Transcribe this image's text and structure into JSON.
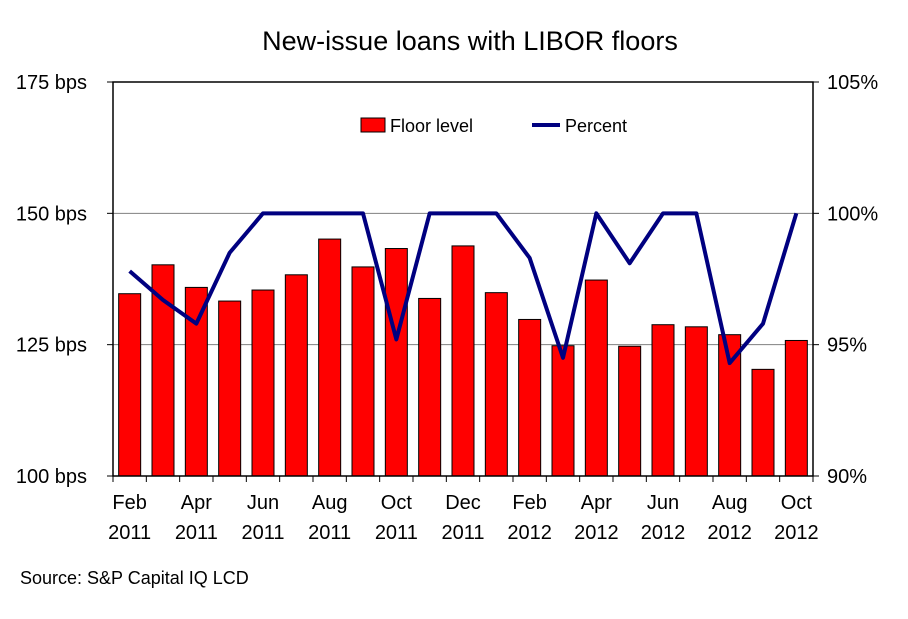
{
  "chart_data": {
    "type": "bar+line",
    "title": "New-issue loans with LIBOR floors",
    "categories": [
      "Feb 2011",
      "Mar 2011",
      "Apr 2011",
      "May 2011",
      "Jun 2011",
      "Jul 2011",
      "Aug 2011",
      "Sep 2011",
      "Oct 2011",
      "Nov 2011",
      "Dec 2011",
      "Jan 2012",
      "Feb 2012",
      "Mar 2012",
      "Apr 2012",
      "May 2012",
      "Jun 2012",
      "Jul 2012",
      "Aug 2012",
      "Sep 2012",
      "Oct 2012"
    ],
    "x_tick_labels": [
      {
        "month": "Feb",
        "year": "2011"
      },
      {
        "month": "Apr",
        "year": "2011"
      },
      {
        "month": "Jun",
        "year": "2011"
      },
      {
        "month": "Aug",
        "year": "2011"
      },
      {
        "month": "Oct",
        "year": "2011"
      },
      {
        "month": "Dec",
        "year": "2011"
      },
      {
        "month": "Feb",
        "year": "2012"
      },
      {
        "month": "Apr",
        "year": "2012"
      },
      {
        "month": "Jun",
        "year": "2012"
      },
      {
        "month": "Aug",
        "year": "2012"
      },
      {
        "month": "Oct",
        "year": "2012"
      }
    ],
    "series": [
      {
        "name": "Floor level",
        "type": "bar",
        "axis": "left",
        "color": "#ff0000",
        "values": [
          134.7,
          140.2,
          135.9,
          133.3,
          135.4,
          138.3,
          145.1,
          139.8,
          143.3,
          133.8,
          143.8,
          134.9,
          129.8,
          124.8,
          137.3,
          124.7,
          128.8,
          128.4,
          126.9,
          120.3,
          125.8
        ]
      },
      {
        "name": "Percent",
        "type": "line",
        "axis": "right",
        "color": "#000080",
        "values": [
          97.8,
          96.7,
          95.8,
          98.5,
          100,
          100,
          100,
          100,
          95.2,
          100,
          100,
          100,
          98.3,
          94.5,
          100,
          98.1,
          100,
          100,
          94.3,
          95.8,
          100
        ]
      }
    ],
    "y_left": {
      "min": 100,
      "max": 175,
      "ticks": [
        "100 bps",
        "125 bps",
        "150 bps",
        "175 bps"
      ],
      "tick_values": [
        100,
        125,
        150,
        175
      ]
    },
    "y_right": {
      "min": 90,
      "max": 105,
      "ticks": [
        "90%",
        "95%",
        "100%",
        "105%"
      ],
      "tick_values": [
        90,
        95,
        100,
        105
      ]
    },
    "gridlines": true,
    "legend_position": "top"
  },
  "source": "Source: S&P Capital IQ LCD"
}
